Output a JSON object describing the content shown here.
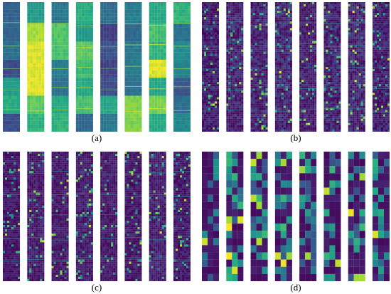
{
  "figure": {
    "panels": [
      {
        "label": "(a)",
        "style": "smooth",
        "colormap": "viridis",
        "columns": 8,
        "column_levels": [
          0.45,
          0.78,
          0.52,
          0.55,
          0.4,
          0.58,
          0.8,
          0.5
        ],
        "seed": 11
      },
      {
        "label": "(b)",
        "style": "noise",
        "colormap": "viridis",
        "columns": 8,
        "column_levels": [
          0.14,
          0.16,
          0.15,
          0.18,
          0.13,
          0.17,
          0.16,
          0.15
        ],
        "seed": 23
      },
      {
        "label": "(c)",
        "style": "noise",
        "colormap": "viridis",
        "columns": 8,
        "column_levels": [
          0.1,
          0.12,
          0.11,
          0.12,
          0.1,
          0.11,
          0.13,
          0.12
        ],
        "seed": 37
      },
      {
        "label": "(d)",
        "style": "blocky",
        "colormap": "viridis",
        "columns": 8,
        "column_levels": [
          0.2,
          0.22,
          0.21,
          0.23,
          0.2,
          0.22,
          0.21,
          0.23
        ],
        "seed": 53
      }
    ],
    "colors": {
      "background": "#ffffff",
      "caption": "#000000"
    }
  }
}
